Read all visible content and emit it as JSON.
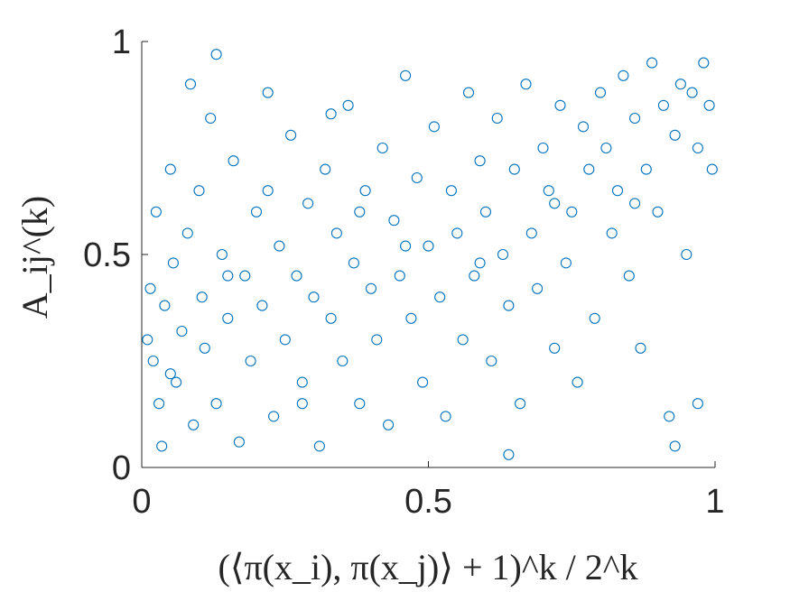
{
  "chart_data": {
    "type": "scatter",
    "title": "",
    "xlabel": "(⟨π(x_i), π(x_j)⟩ + 1)^k / 2^k",
    "ylabel": "A_ij^(k)",
    "xlim": [
      0,
      1
    ],
    "ylim": [
      0,
      1
    ],
    "xticks": [
      0,
      0.5,
      1
    ],
    "yticks": [
      0,
      0.5,
      1
    ],
    "xtick_labels": [
      "0",
      "0.5",
      "1"
    ],
    "ytick_labels": [
      "0",
      "0.5",
      "1"
    ],
    "grid": false,
    "marker": "open-circle",
    "color": "#0072BD",
    "series": [
      {
        "points": [
          [
            0.01,
            0.3
          ],
          [
            0.015,
            0.42
          ],
          [
            0.02,
            0.25
          ],
          [
            0.025,
            0.6
          ],
          [
            0.03,
            0.15
          ],
          [
            0.035,
            0.05
          ],
          [
            0.04,
            0.38
          ],
          [
            0.05,
            0.7
          ],
          [
            0.055,
            0.48
          ],
          [
            0.06,
            0.2
          ],
          [
            0.07,
            0.32
          ],
          [
            0.08,
            0.55
          ],
          [
            0.085,
            0.9
          ],
          [
            0.09,
            0.1
          ],
          [
            0.1,
            0.65
          ],
          [
            0.105,
            0.4
          ],
          [
            0.11,
            0.28
          ],
          [
            0.12,
            0.82
          ],
          [
            0.13,
            0.15
          ],
          [
            0.14,
            0.5
          ],
          [
            0.15,
            0.35
          ],
          [
            0.16,
            0.72
          ],
          [
            0.17,
            0.06
          ],
          [
            0.18,
            0.45
          ],
          [
            0.19,
            0.25
          ],
          [
            0.2,
            0.6
          ],
          [
            0.21,
            0.38
          ],
          [
            0.22,
            0.88
          ],
          [
            0.23,
            0.12
          ],
          [
            0.24,
            0.52
          ],
          [
            0.25,
            0.3
          ],
          [
            0.26,
            0.78
          ],
          [
            0.27,
            0.45
          ],
          [
            0.28,
            0.2
          ],
          [
            0.29,
            0.62
          ],
          [
            0.3,
            0.4
          ],
          [
            0.31,
            0.05
          ],
          [
            0.32,
            0.7
          ],
          [
            0.33,
            0.35
          ],
          [
            0.34,
            0.55
          ],
          [
            0.35,
            0.25
          ],
          [
            0.36,
            0.85
          ],
          [
            0.37,
            0.48
          ],
          [
            0.38,
            0.15
          ],
          [
            0.39,
            0.65
          ],
          [
            0.4,
            0.42
          ],
          [
            0.41,
            0.3
          ],
          [
            0.42,
            0.75
          ],
          [
            0.43,
            0.1
          ],
          [
            0.44,
            0.58
          ],
          [
            0.45,
            0.45
          ],
          [
            0.46,
            0.92
          ],
          [
            0.47,
            0.35
          ],
          [
            0.48,
            0.68
          ],
          [
            0.49,
            0.2
          ],
          [
            0.5,
            0.52
          ],
          [
            0.51,
            0.8
          ],
          [
            0.52,
            0.4
          ],
          [
            0.53,
            0.12
          ],
          [
            0.54,
            0.65
          ],
          [
            0.55,
            0.55
          ],
          [
            0.56,
            0.3
          ],
          [
            0.57,
            0.88
          ],
          [
            0.58,
            0.45
          ],
          [
            0.59,
            0.72
          ],
          [
            0.6,
            0.6
          ],
          [
            0.61,
            0.25
          ],
          [
            0.62,
            0.82
          ],
          [
            0.63,
            0.5
          ],
          [
            0.64,
            0.38
          ],
          [
            0.65,
            0.7
          ],
          [
            0.66,
            0.15
          ],
          [
            0.67,
            0.9
          ],
          [
            0.68,
            0.55
          ],
          [
            0.69,
            0.42
          ],
          [
            0.7,
            0.75
          ],
          [
            0.71,
            0.65
          ],
          [
            0.72,
            0.28
          ],
          [
            0.73,
            0.85
          ],
          [
            0.74,
            0.48
          ],
          [
            0.75,
            0.6
          ],
          [
            0.76,
            0.2
          ],
          [
            0.77,
            0.8
          ],
          [
            0.78,
            0.7
          ],
          [
            0.79,
            0.35
          ],
          [
            0.8,
            0.88
          ],
          [
            0.81,
            0.75
          ],
          [
            0.82,
            0.55
          ],
          [
            0.83,
            0.65
          ],
          [
            0.84,
            0.92
          ],
          [
            0.85,
            0.45
          ],
          [
            0.86,
            0.82
          ],
          [
            0.87,
            0.28
          ],
          [
            0.88,
            0.7
          ],
          [
            0.89,
            0.95
          ],
          [
            0.9,
            0.6
          ],
          [
            0.91,
            0.85
          ],
          [
            0.92,
            0.12
          ],
          [
            0.93,
            0.78
          ],
          [
            0.94,
            0.9
          ],
          [
            0.95,
            0.5
          ],
          [
            0.96,
            0.88
          ],
          [
            0.97,
            0.75
          ],
          [
            0.98,
            0.95
          ],
          [
            0.99,
            0.85
          ],
          [
            0.995,
            0.7
          ],
          [
            0.93,
            0.05
          ],
          [
            0.97,
            0.15
          ],
          [
            0.64,
            0.03
          ],
          [
            0.13,
            0.97
          ],
          [
            0.22,
            0.65
          ],
          [
            0.38,
            0.6
          ],
          [
            0.15,
            0.45
          ],
          [
            0.05,
            0.22
          ],
          [
            0.28,
            0.15
          ],
          [
            0.46,
            0.52
          ],
          [
            0.59,
            0.48
          ],
          [
            0.72,
            0.62
          ],
          [
            0.86,
            0.62
          ],
          [
            0.33,
            0.83
          ]
        ]
      }
    ]
  }
}
